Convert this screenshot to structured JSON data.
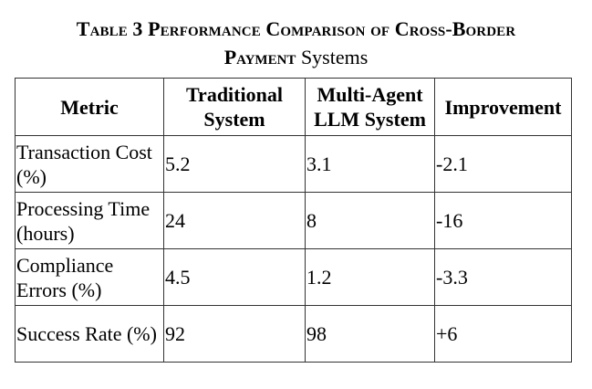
{
  "caption": {
    "line1": "Table 3 Performance Comparison of Cross-Border",
    "line2_smallcaps": "Payment",
    "line2_rest": " Systems"
  },
  "table": {
    "headers": [
      "Metric",
      "Traditional System",
      "Multi-Agent LLM System",
      "Improvement"
    ],
    "rows": [
      [
        "Transaction Cost (%)",
        "5.2",
        "3.1",
        "-2.1"
      ],
      [
        "Processing Time (hours)",
        "24",
        "8",
        "-16"
      ],
      [
        "Compliance Errors (%)",
        "4.5",
        "1.2",
        "-3.3"
      ],
      [
        "Success Rate (%)",
        "92",
        "98",
        "+6"
      ]
    ]
  }
}
